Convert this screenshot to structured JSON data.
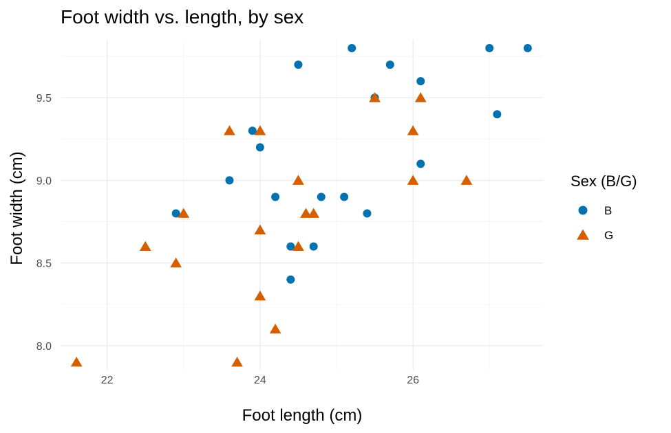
{
  "chart_data": {
    "type": "scatter",
    "title": "Foot width vs. length, by sex",
    "xlabel": "Foot length (cm)",
    "ylabel": "Foot width (cm)",
    "xlim": [
      21.4,
      27.7
    ],
    "ylim": [
      7.85,
      9.85
    ],
    "x_major_ticks": [
      22,
      24,
      26
    ],
    "x_minor_ticks": [
      23,
      25,
      27
    ],
    "y_major_ticks": [
      8.0,
      8.5,
      9.0,
      9.5
    ],
    "y_minor_ticks": [
      8.25,
      8.75,
      9.25,
      9.75
    ],
    "x_tick_labels": [
      "22",
      "24",
      "26"
    ],
    "y_tick_labels": [
      "8.0",
      "8.5",
      "9.0",
      "9.5"
    ],
    "grid": true,
    "legend": {
      "title": "Sex (B/G)",
      "placement": "right"
    },
    "series": [
      {
        "name": "B",
        "marker": "circle",
        "color": "#0072B2",
        "points": [
          [
            22.9,
            8.8
          ],
          [
            23.6,
            9.0
          ],
          [
            23.9,
            9.3
          ],
          [
            24.0,
            9.2
          ],
          [
            24.2,
            8.9
          ],
          [
            24.4,
            8.6
          ],
          [
            24.4,
            8.4
          ],
          [
            24.5,
            9.7
          ],
          [
            24.7,
            8.6
          ],
          [
            24.8,
            8.9
          ],
          [
            25.1,
            8.9
          ],
          [
            25.2,
            9.8
          ],
          [
            25.4,
            8.8
          ],
          [
            25.5,
            9.5
          ],
          [
            25.7,
            9.7
          ],
          [
            26.1,
            9.6
          ],
          [
            26.1,
            9.1
          ],
          [
            27.0,
            9.8
          ],
          [
            27.1,
            9.4
          ],
          [
            27.5,
            9.8
          ]
        ]
      },
      {
        "name": "G",
        "marker": "triangle",
        "color": "#D55E00",
        "points": [
          [
            21.6,
            7.9
          ],
          [
            22.5,
            8.6
          ],
          [
            22.9,
            8.5
          ],
          [
            23.0,
            8.8
          ],
          [
            23.6,
            9.3
          ],
          [
            23.7,
            7.9
          ],
          [
            24.0,
            9.3
          ],
          [
            24.0,
            8.7
          ],
          [
            24.0,
            8.3
          ],
          [
            24.2,
            8.1
          ],
          [
            24.5,
            9.0
          ],
          [
            24.5,
            8.6
          ],
          [
            24.6,
            8.8
          ],
          [
            24.7,
            8.8
          ],
          [
            25.5,
            9.5
          ],
          [
            26.0,
            9.3
          ],
          [
            26.0,
            9.0
          ],
          [
            26.1,
            9.5
          ],
          [
            26.7,
            9.0
          ]
        ]
      }
    ]
  }
}
